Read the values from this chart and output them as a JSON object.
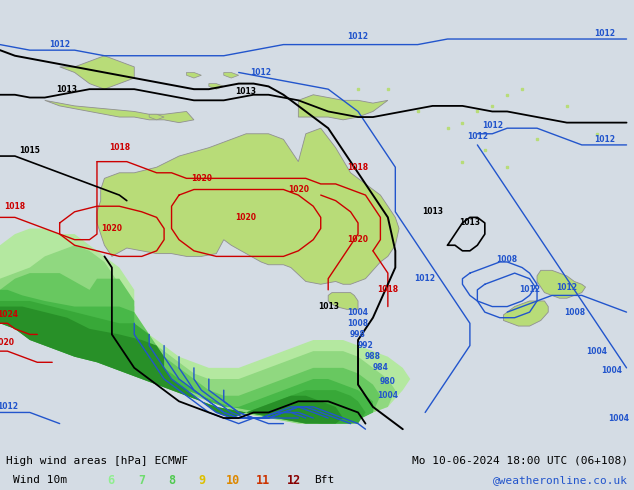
{
  "title_left": "High wind areas [hPa] ECMWF",
  "title_right": "Mo 10-06-2024 18:00 UTC (06+108)",
  "legend_label": "Wind 10m",
  "legend_values": [
    "6",
    "7",
    "8",
    "9",
    "10",
    "11",
    "12",
    "Bft"
  ],
  "legend_colors": [
    "#90ee90",
    "#6fdc6f",
    "#50ca50",
    "#ddc000",
    "#dd8800",
    "#cc3300",
    "#880000"
  ],
  "watermark": "@weatheronline.co.uk",
  "ocean_color": "#d4dce4",
  "land_color": "#b8dc78",
  "wind_shade_colors": [
    "#b0e8b0",
    "#88d888",
    "#60c060",
    "#50a850",
    "#3a903a"
  ],
  "figsize": [
    6.34,
    4.9
  ],
  "dpi": 100
}
